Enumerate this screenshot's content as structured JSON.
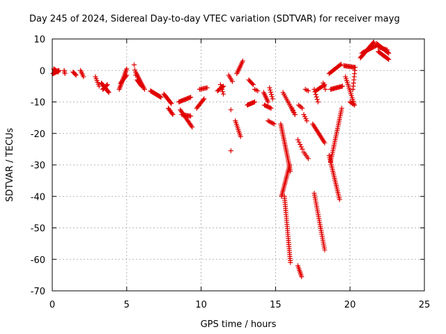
{
  "chart_data": {
    "type": "scatter",
    "title": "Day 245 of 2024, Sidereal Day-to-day VTEC variation (SDTVAR) for receiver mayg",
    "xlabel": "GPS time / hours",
    "ylabel": "SDTVAR / TECUs",
    "xlim": [
      0,
      25
    ],
    "ylim": [
      -70,
      10
    ],
    "xticks": [
      0,
      5,
      10,
      15,
      20,
      25
    ],
    "yticks": [
      10,
      0,
      -10,
      -20,
      -30,
      -40,
      -50,
      -60,
      -70
    ],
    "xtick_labels": [
      "0",
      "5",
      "10",
      "15",
      "20",
      "25"
    ],
    "ytick_labels": [
      "10",
      "0",
      "-10",
      "-20",
      "-30",
      "-40",
      "-50",
      "-60",
      "-70"
    ],
    "grid": true,
    "marker": "plus",
    "color": "#e00000",
    "segments": [
      {
        "x0": 0.05,
        "x1": 0.45,
        "y0": -1.0,
        "y1": 0.0,
        "n": 18
      },
      {
        "x0": 0.1,
        "x1": 0.4,
        "y0": 0.5,
        "y1": -0.5,
        "n": 8
      },
      {
        "x0": 0.8,
        "x1": 0.85,
        "y0": 0.0,
        "y1": -1.0,
        "n": 3
      },
      {
        "x0": 1.4,
        "x1": 1.6,
        "y0": -0.5,
        "y1": -1.5,
        "n": 5
      },
      {
        "x0": 1.9,
        "x1": 2.1,
        "y0": 0.0,
        "y1": -2.0,
        "n": 5
      },
      {
        "x0": 2.9,
        "x1": 3.15,
        "y0": -2.0,
        "y1": -5.0,
        "n": 6
      },
      {
        "x0": 3.3,
        "x1": 3.8,
        "y0": -4.0,
        "y1": -7.0,
        "n": 14
      },
      {
        "x0": 3.4,
        "x1": 3.7,
        "y0": -6.0,
        "y1": -4.5,
        "n": 8
      },
      {
        "x0": 4.5,
        "x1": 5.0,
        "y0": -6.0,
        "y1": 0.5,
        "n": 16
      },
      {
        "x0": 4.6,
        "x1": 5.0,
        "y0": -4.0,
        "y1": -1.5,
        "n": 8
      },
      {
        "x0": 5.5,
        "x1": 5.6,
        "y0": 1.8,
        "y1": -1.5,
        "n": 3
      },
      {
        "x0": 5.6,
        "x1": 6.2,
        "y0": -0.5,
        "y1": -6.0,
        "n": 14
      },
      {
        "x0": 5.7,
        "x1": 6.0,
        "y0": -3.0,
        "y1": -5.0,
        "n": 8
      },
      {
        "x0": 6.6,
        "x1": 7.3,
        "y0": -6.5,
        "y1": -8.5,
        "n": 16
      },
      {
        "x0": 7.5,
        "x1": 8.0,
        "y0": -7.5,
        "y1": -10.5,
        "n": 12
      },
      {
        "x0": 7.8,
        "x1": 8.1,
        "y0": -12.0,
        "y1": -14.0,
        "n": 7
      },
      {
        "x0": 8.5,
        "x1": 9.3,
        "y0": -10.0,
        "y1": -8.5,
        "n": 14
      },
      {
        "x0": 8.6,
        "x1": 9.4,
        "y0": -12.5,
        "y1": -18.0,
        "n": 16
      },
      {
        "x0": 8.7,
        "x1": 9.3,
        "y0": -14.0,
        "y1": -14.5,
        "n": 10
      },
      {
        "x0": 9.7,
        "x1": 10.2,
        "y0": -12.0,
        "y1": -9.0,
        "n": 10
      },
      {
        "x0": 9.9,
        "x1": 10.4,
        "y0": -6.0,
        "y1": -5.5,
        "n": 8
      },
      {
        "x0": 11.1,
        "x1": 11.5,
        "y0": -6.5,
        "y1": -5.0,
        "n": 8
      },
      {
        "x0": 11.3,
        "x1": 11.5,
        "y0": -4.5,
        "y1": -7.5,
        "n": 5
      },
      {
        "x0": 11.85,
        "x1": 12.1,
        "y0": -1.5,
        "y1": -3.5,
        "n": 5
      },
      {
        "x0": 12.0,
        "x1": 12.0,
        "y0": -12.5,
        "y1": -12.5,
        "n": 1
      },
      {
        "x0": 12.0,
        "x1": 12.0,
        "y0": -25.5,
        "y1": -25.5,
        "n": 1
      },
      {
        "x0": 12.3,
        "x1": 12.65,
        "y0": -16.0,
        "y1": -21.0,
        "n": 10
      },
      {
        "x0": 12.4,
        "x1": 12.8,
        "y0": -1.0,
        "y1": 3.0,
        "n": 10
      },
      {
        "x0": 13.2,
        "x1": 13.5,
        "y0": -3.0,
        "y1": -4.5,
        "n": 6
      },
      {
        "x0": 13.1,
        "x1": 13.6,
        "y0": -11.0,
        "y1": -10.0,
        "n": 10
      },
      {
        "x0": 13.6,
        "x1": 13.8,
        "y0": -6.0,
        "y1": -6.5,
        "n": 3
      },
      {
        "x0": 14.2,
        "x1": 14.5,
        "y0": -7.0,
        "y1": -10.0,
        "n": 8
      },
      {
        "x0": 14.25,
        "x1": 14.7,
        "y0": -11.0,
        "y1": -12.0,
        "n": 8
      },
      {
        "x0": 14.5,
        "x1": 14.9,
        "y0": -16.0,
        "y1": -17.0,
        "n": 6
      },
      {
        "x0": 14.6,
        "x1": 14.8,
        "y0": -5.5,
        "y1": -9.0,
        "n": 6
      },
      {
        "x0": 15.35,
        "x1": 16.0,
        "y0": -17.0,
        "y1": -32.0,
        "n": 30
      },
      {
        "x0": 15.4,
        "x1": 15.95,
        "y0": -40.0,
        "y1": -30.0,
        "n": 22
      },
      {
        "x0": 15.6,
        "x1": 16.0,
        "y0": -40.0,
        "y1": -61.0,
        "n": 34
      },
      {
        "x0": 15.5,
        "x1": 16.3,
        "y0": -7.0,
        "y1": -14.0,
        "n": 14
      },
      {
        "x0": 16.1,
        "x1": 16.3,
        "y0": -12.0,
        "y1": -14.0,
        "n": 4
      },
      {
        "x0": 16.5,
        "x1": 16.8,
        "y0": -22.0,
        "y1": -25.0,
        "n": 5
      },
      {
        "x0": 16.9,
        "x1": 17.2,
        "y0": -26.0,
        "y1": -28.0,
        "n": 5
      },
      {
        "x0": 16.5,
        "x1": 16.75,
        "y0": -62.0,
        "y1": -65.5,
        "n": 8
      },
      {
        "x0": 16.55,
        "x1": 16.8,
        "y0": -11.0,
        "y1": -12.0,
        "n": 4
      },
      {
        "x0": 16.9,
        "x1": 17.1,
        "y0": -14.0,
        "y1": -16.0,
        "n": 4
      },
      {
        "x0": 17.0,
        "x1": 17.2,
        "y0": -6.0,
        "y1": -6.5,
        "n": 3
      },
      {
        "x0": 17.6,
        "x1": 18.3,
        "y0": -39.0,
        "y1": -57.0,
        "n": 30
      },
      {
        "x0": 17.5,
        "x1": 18.3,
        "y0": -17.0,
        "y1": -23.0,
        "n": 16
      },
      {
        "x0": 17.6,
        "x1": 17.85,
        "y0": -6.0,
        "y1": -10.0,
        "n": 6
      },
      {
        "x0": 17.7,
        "x1": 18.3,
        "y0": -6.5,
        "y1": -4.5,
        "n": 10
      },
      {
        "x0": 18.2,
        "x1": 18.35,
        "y0": -4.0,
        "y1": -6.0,
        "n": 3
      },
      {
        "x0": 18.6,
        "x1": 19.3,
        "y0": -27.0,
        "y1": -41.0,
        "n": 26
      },
      {
        "x0": 18.7,
        "x1": 19.45,
        "y0": -29.0,
        "y1": -12.0,
        "n": 30
      },
      {
        "x0": 18.7,
        "x1": 19.5,
        "y0": -6.0,
        "y1": -5.0,
        "n": 14
      },
      {
        "x0": 18.6,
        "x1": 19.4,
        "y0": -1.0,
        "y1": 2.0,
        "n": 14
      },
      {
        "x0": 19.6,
        "x1": 20.3,
        "y0": 1.5,
        "y1": 1.0,
        "n": 12
      },
      {
        "x0": 19.7,
        "x1": 20.3,
        "y0": -2.0,
        "y1": -11.0,
        "n": 16
      },
      {
        "x0": 20.0,
        "x1": 20.3,
        "y0": -10.0,
        "y1": -11.0,
        "n": 5
      },
      {
        "x0": 20.2,
        "x1": 20.35,
        "y0": -6.0,
        "y1": 1.0,
        "n": 8
      },
      {
        "x0": 20.7,
        "x1": 21.6,
        "y0": 4.0,
        "y1": 9.0,
        "n": 22
      },
      {
        "x0": 20.8,
        "x1": 21.8,
        "y0": 5.5,
        "y1": 8.0,
        "n": 18
      },
      {
        "x0": 21.8,
        "x1": 22.6,
        "y0": 8.5,
        "y1": 5.5,
        "n": 18
      },
      {
        "x0": 21.9,
        "x1": 22.6,
        "y0": 6.0,
        "y1": 3.5,
        "n": 14
      },
      {
        "x0": 21.9,
        "x1": 22.5,
        "y0": 7.5,
        "y1": 6.5,
        "n": 10
      }
    ]
  }
}
